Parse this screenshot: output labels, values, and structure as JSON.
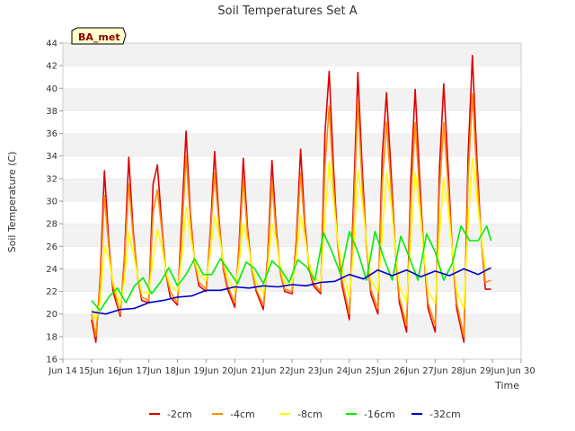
{
  "chart_data": {
    "type": "line",
    "title": "Soil Temperatures Set A",
    "xlabel": "Time",
    "ylabel": "Soil Temperature (C)",
    "badge": "BA_met",
    "xlim": [
      14,
      30
    ],
    "ylim": [
      16,
      44
    ],
    "x_ticks": [
      14,
      15,
      16,
      17,
      18,
      19,
      20,
      21,
      22,
      23,
      24,
      25,
      26,
      27,
      28,
      29,
      30
    ],
    "x_tick_labels": [
      "Jun 14",
      "15Jun",
      "16Jun",
      "17Jun",
      "18Jun",
      "19Jun",
      "20Jun",
      "21Jun",
      "22Jun",
      "23Jun",
      "24Jun",
      "25Jun",
      "26Jun",
      "27Jun",
      "28Jun",
      "29Jun",
      "Jun 30"
    ],
    "y_ticks": [
      16,
      18,
      20,
      22,
      24,
      26,
      28,
      30,
      32,
      34,
      36,
      38,
      40,
      42,
      44
    ],
    "grid": "horizontal bands",
    "legend_position": "bottom",
    "series": [
      {
        "name": "-2cm",
        "color": "#e00000",
        "x": [
          15.0,
          15.15,
          15.3,
          15.45,
          15.6,
          15.75,
          16.0,
          16.15,
          16.3,
          16.45,
          16.6,
          16.75,
          17.0,
          17.15,
          17.3,
          17.45,
          17.6,
          17.75,
          18.0,
          18.15,
          18.3,
          18.45,
          18.6,
          18.75,
          19.0,
          19.15,
          19.3,
          19.45,
          19.6,
          19.75,
          20.0,
          20.15,
          20.3,
          20.45,
          20.6,
          20.75,
          21.0,
          21.15,
          21.3,
          21.45,
          21.6,
          21.75,
          22.0,
          22.15,
          22.3,
          22.45,
          22.6,
          22.75,
          23.0,
          23.15,
          23.3,
          23.45,
          23.6,
          23.75,
          24.0,
          24.15,
          24.3,
          24.45,
          24.6,
          24.75,
          25.0,
          25.15,
          25.3,
          25.45,
          25.6,
          25.75,
          26.0,
          26.15,
          26.3,
          26.45,
          26.6,
          26.75,
          27.0,
          27.15,
          27.3,
          27.45,
          27.6,
          27.75,
          28.0,
          28.15,
          28.3,
          28.45,
          28.6,
          28.75,
          28.95
        ],
        "y": [
          19.5,
          17.5,
          23.0,
          32.7,
          26.5,
          22.0,
          19.8,
          25.0,
          33.9,
          27.5,
          23.5,
          21.2,
          21.0,
          31.5,
          33.2,
          28.0,
          23.5,
          21.5,
          20.8,
          28.5,
          36.2,
          29.0,
          24.5,
          22.5,
          22.0,
          27.5,
          34.4,
          28.5,
          24.0,
          22.2,
          20.6,
          26.0,
          33.8,
          27.5,
          23.8,
          22.0,
          20.4,
          25.0,
          33.6,
          27.5,
          23.5,
          22.0,
          21.8,
          26.5,
          34.6,
          28.0,
          24.0,
          22.5,
          21.8,
          36.0,
          41.5,
          33.0,
          26.0,
          22.5,
          19.5,
          30.0,
          41.4,
          33.0,
          26.0,
          21.8,
          20.0,
          34.0,
          39.6,
          33.0,
          26.0,
          21.0,
          18.4,
          32.0,
          39.9,
          32.5,
          25.5,
          20.5,
          18.4,
          33.0,
          40.4,
          33.0,
          25.5,
          20.5,
          17.5,
          34.0,
          42.9,
          34.0,
          27.0,
          22.2,
          22.2
        ]
      },
      {
        "name": "-4cm",
        "color": "#ff8c00",
        "x": [
          15.0,
          15.15,
          15.3,
          15.45,
          15.6,
          15.75,
          16.0,
          16.15,
          16.3,
          16.45,
          16.6,
          16.75,
          17.0,
          17.15,
          17.3,
          17.45,
          17.6,
          17.75,
          18.0,
          18.15,
          18.3,
          18.45,
          18.6,
          18.75,
          19.0,
          19.15,
          19.3,
          19.45,
          19.6,
          19.75,
          20.0,
          20.15,
          20.3,
          20.45,
          20.6,
          20.75,
          21.0,
          21.15,
          21.3,
          21.45,
          21.6,
          21.75,
          22.0,
          22.15,
          22.3,
          22.45,
          22.6,
          22.75,
          23.0,
          23.15,
          23.3,
          23.45,
          23.6,
          23.75,
          24.0,
          24.15,
          24.3,
          24.45,
          24.6,
          24.75,
          25.0,
          25.15,
          25.3,
          25.45,
          25.6,
          25.75,
          26.0,
          26.15,
          26.3,
          26.45,
          26.6,
          26.75,
          27.0,
          27.15,
          27.3,
          27.45,
          27.6,
          27.75,
          28.0,
          28.15,
          28.3,
          28.45,
          28.6,
          28.75,
          28.95
        ],
        "y": [
          20.0,
          18.0,
          22.5,
          30.5,
          26.0,
          22.5,
          20.0,
          24.5,
          31.5,
          27.0,
          23.5,
          21.5,
          21.2,
          29.0,
          31.0,
          27.5,
          23.5,
          22.0,
          21.0,
          27.0,
          34.0,
          28.5,
          24.5,
          22.8,
          22.2,
          27.0,
          32.5,
          28.0,
          24.2,
          22.5,
          21.0,
          25.5,
          32.0,
          27.0,
          23.8,
          22.2,
          20.8,
          24.5,
          31.8,
          27.0,
          23.5,
          22.2,
          22.0,
          26.0,
          32.5,
          27.5,
          24.0,
          22.8,
          22.0,
          33.0,
          38.4,
          31.5,
          26.0,
          23.0,
          20.0,
          28.5,
          38.8,
          31.5,
          26.0,
          22.2,
          20.5,
          31.5,
          37.0,
          31.5,
          25.8,
          21.5,
          19.0,
          30.0,
          37.0,
          31.0,
          25.5,
          21.0,
          19.0,
          31.0,
          37.0,
          31.5,
          25.5,
          21.0,
          18.0,
          32.0,
          39.5,
          32.5,
          27.0,
          22.8,
          23.0
        ]
      },
      {
        "name": "-8cm",
        "color": "#ffff00",
        "x": [
          15.0,
          15.15,
          15.3,
          15.45,
          15.6,
          15.75,
          16.0,
          16.15,
          16.3,
          16.45,
          16.6,
          16.75,
          17.0,
          17.15,
          17.3,
          17.45,
          17.6,
          17.75,
          18.0,
          18.15,
          18.3,
          18.45,
          18.6,
          18.75,
          19.0,
          19.15,
          19.3,
          19.45,
          19.6,
          19.75,
          20.0,
          20.15,
          20.3,
          20.45,
          20.6,
          20.75,
          21.0,
          21.15,
          21.3,
          21.45,
          21.6,
          21.75,
          22.0,
          22.15,
          22.3,
          22.45,
          22.6,
          22.75,
          23.0,
          23.15,
          23.3,
          23.45,
          23.6,
          23.75,
          24.0,
          24.15,
          24.3,
          24.45,
          24.6,
          24.75,
          25.0,
          25.15,
          25.3,
          25.45,
          25.6,
          25.75,
          26.0,
          26.15,
          26.3,
          26.45,
          26.6,
          26.75,
          27.0,
          27.15,
          27.3,
          27.45,
          27.6,
          27.75,
          28.0,
          28.15,
          28.3,
          28.45,
          28.6,
          28.75,
          28.95
        ],
        "y": [
          20.5,
          19.5,
          21.0,
          26.0,
          25.0,
          22.8,
          20.8,
          23.0,
          27.2,
          25.5,
          23.5,
          22.0,
          21.8,
          25.0,
          27.5,
          26.0,
          23.8,
          22.5,
          22.0,
          25.0,
          29.5,
          27.0,
          24.8,
          23.5,
          23.0,
          25.5,
          28.7,
          27.0,
          24.8,
          23.2,
          22.0,
          24.5,
          28.0,
          26.5,
          24.2,
          22.8,
          21.8,
          24.0,
          28.0,
          26.5,
          24.0,
          22.8,
          22.5,
          25.0,
          28.7,
          26.8,
          24.5,
          23.3,
          22.8,
          28.5,
          33.5,
          30.0,
          26.5,
          24.0,
          21.5,
          25.5,
          32.8,
          30.0,
          26.5,
          23.0,
          22.0,
          27.0,
          32.5,
          30.0,
          26.0,
          22.5,
          21.0,
          26.5,
          32.5,
          29.5,
          25.5,
          22.0,
          21.0,
          27.0,
          32.0,
          29.5,
          25.5,
          22.0,
          20.5,
          28.0,
          33.8,
          30.5,
          27.0,
          24.0,
          24.0
        ]
      },
      {
        "name": "-16cm",
        "color": "#00ee00",
        "x": [
          15.0,
          15.3,
          15.6,
          15.9,
          16.2,
          16.5,
          16.8,
          17.1,
          17.4,
          17.7,
          18.0,
          18.3,
          18.6,
          18.9,
          19.2,
          19.5,
          19.8,
          20.1,
          20.4,
          20.7,
          21.0,
          21.3,
          21.6,
          21.9,
          22.2,
          22.5,
          22.8,
          23.1,
          23.4,
          23.7,
          24.0,
          24.3,
          24.6,
          24.9,
          25.2,
          25.5,
          25.8,
          26.1,
          26.4,
          26.7,
          27.0,
          27.3,
          27.6,
          27.9,
          28.2,
          28.5,
          28.8,
          28.95
        ],
        "y": [
          21.2,
          20.3,
          21.5,
          22.3,
          21.0,
          22.5,
          23.2,
          21.8,
          22.8,
          24.1,
          22.5,
          23.5,
          24.9,
          23.5,
          23.5,
          24.9,
          23.8,
          22.7,
          24.6,
          24.0,
          22.7,
          24.7,
          24.0,
          22.8,
          24.8,
          24.2,
          23.0,
          27.2,
          25.5,
          23.5,
          27.3,
          25.5,
          23.0,
          27.3,
          25.0,
          23.0,
          26.9,
          25.0,
          23.0,
          27.1,
          25.5,
          23.0,
          24.5,
          27.8,
          26.5,
          26.5,
          27.8,
          26.5
        ]
      },
      {
        "name": "-32cm",
        "color": "#0000cc",
        "x": [
          15.0,
          15.5,
          16.0,
          16.5,
          17.0,
          17.5,
          18.0,
          18.5,
          19.0,
          19.5,
          20.0,
          20.5,
          21.0,
          21.5,
          22.0,
          22.5,
          23.0,
          23.5,
          24.0,
          24.5,
          25.0,
          25.5,
          26.0,
          26.5,
          27.0,
          27.5,
          28.0,
          28.5,
          28.95
        ],
        "y": [
          20.2,
          20.0,
          20.4,
          20.5,
          21.0,
          21.2,
          21.5,
          21.6,
          22.1,
          22.1,
          22.4,
          22.3,
          22.5,
          22.4,
          22.6,
          22.5,
          22.8,
          22.9,
          23.5,
          23.1,
          23.9,
          23.4,
          23.9,
          23.3,
          23.8,
          23.4,
          24.0,
          23.5,
          24.1
        ]
      }
    ]
  }
}
